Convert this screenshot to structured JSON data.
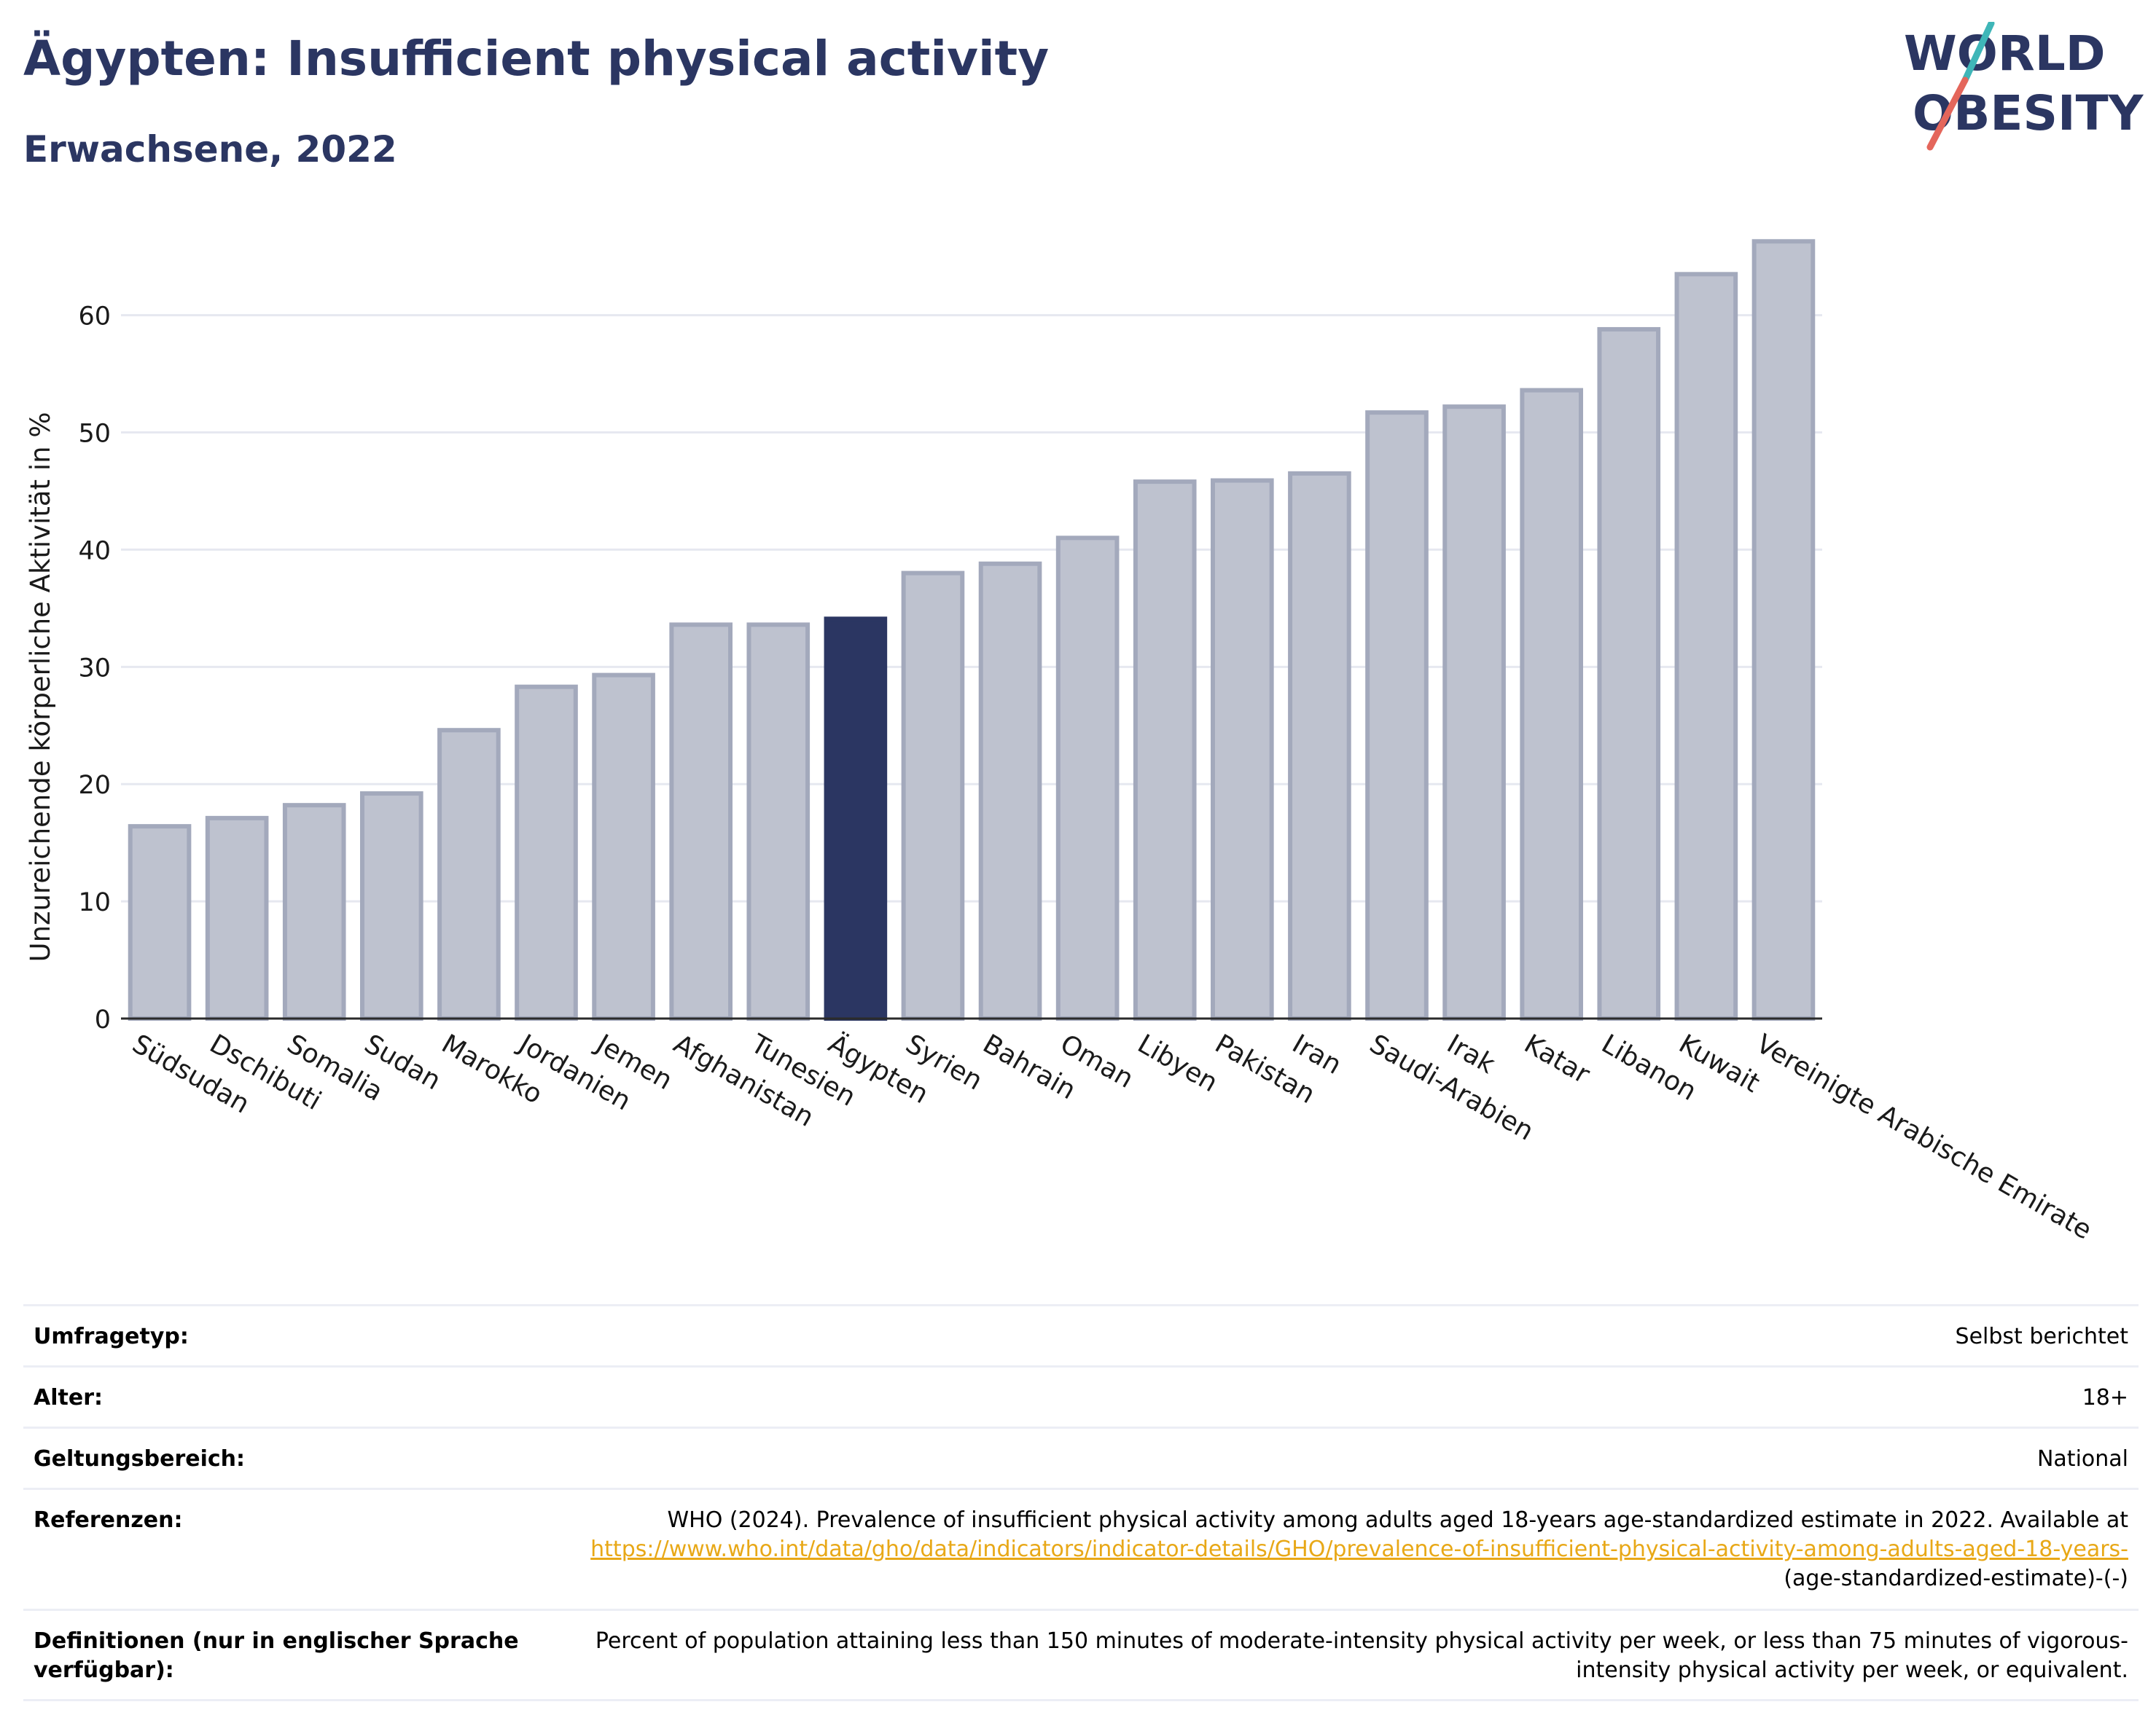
{
  "header": {
    "title": "Ägypten: Insufficient physical activity",
    "subtitle": "Erwachsene, 2022"
  },
  "logo": {
    "line1": "WORLD",
    "line2": "OBESITY",
    "text_color": "#2b3662",
    "slash_top": "#3fb6b8",
    "slash_bottom": "#e4665b"
  },
  "colors": {
    "highlight": "#2b3662",
    "bar": "#bec2cf",
    "bar_edge": "#a3a9bc",
    "grid": "#e6e8f0",
    "link": "#e8a817"
  },
  "chart_data": {
    "type": "bar",
    "ylabel": "Unzureichende körperliche Aktivität in %",
    "ylim": [
      0,
      67
    ],
    "yticks": [
      0,
      10,
      20,
      30,
      40,
      50,
      60
    ],
    "grid": true,
    "highlight": "Ägypten",
    "categories": [
      "Südsudan",
      "Dschibuti",
      "Somalia",
      "Sudan",
      "Marokko",
      "Jordanien",
      "Jemen",
      "Afghanistan",
      "Tunesien",
      "Ägypten",
      "Syrien",
      "Bahrain",
      "Oman",
      "Libyen",
      "Pakistan",
      "Iran",
      "Saudi-Arabien",
      "Irak",
      "Katar",
      "Libanon",
      "Kuwait",
      "Vereinigte Arabische Emirate"
    ],
    "values": [
      16.4,
      17.1,
      18.2,
      19.2,
      24.6,
      28.3,
      29.3,
      33.6,
      33.6,
      34.1,
      38.0,
      38.8,
      41.0,
      45.8,
      45.9,
      46.5,
      51.7,
      52.2,
      53.6,
      58.8,
      63.5,
      66.3
    ]
  },
  "info": {
    "survey_label": "Umfragetyp:",
    "survey_value": "Selbst berichtet",
    "age_label": "Alter:",
    "age_value": "18+",
    "scope_label": "Geltungsbereich:",
    "scope_value": "National",
    "ref_label": "Referenzen:",
    "ref_text": "WHO (2024). Prevalence of insufficient physical activity among adults aged 18-years age-standardized estimate in 2022. Available at",
    "ref_link": "https://www.who.int/data/gho/data/indicators/indicator-details/GHO/prevalence-of-insufficient-physical-activity-among-adults-aged-18-years-",
    "ref_suffix": "(age-standardized-estimate)-(-)",
    "def_label": "Definitionen (nur in englischer Sprache verfügbar):",
    "def_value": "Percent of population attaining less than 150 minutes of moderate-intensity physical activity per week, or less than 75 minutes of vigorous-intensity physical activity per week, or equivalent."
  }
}
